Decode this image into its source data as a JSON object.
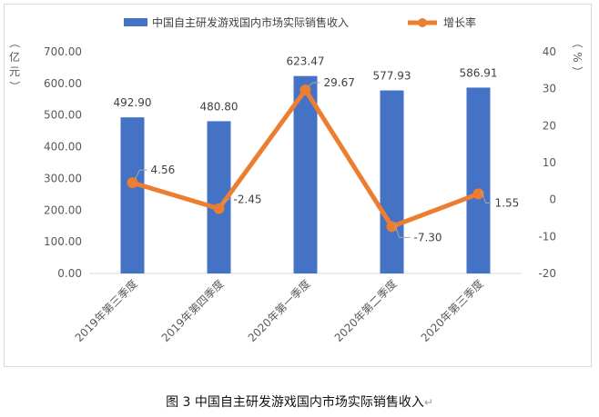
{
  "caption": "图 3  中国自主研发游戏国内市场实际销售收入",
  "caption_mark": "↵",
  "chart_data": {
    "type": "bar",
    "categories": [
      "2019年第三季度",
      "2019年第四季度",
      "2020年第一季度",
      "2020年第二季度",
      "2020年第三季度"
    ],
    "series": [
      {
        "name": "中国自主研发游戏国内市场实际销售收入",
        "type": "bar",
        "axis": "left",
        "values": [
          492.9,
          480.8,
          623.47,
          577.93,
          586.91
        ],
        "labels": [
          "492.90",
          "480.80",
          "623.47",
          "577.93",
          "586.91"
        ],
        "color": "#4472c4"
      },
      {
        "name": "增长率",
        "type": "line",
        "axis": "right",
        "values": [
          4.56,
          -2.45,
          29.67,
          -7.3,
          1.55
        ],
        "labels": [
          "4.56",
          "-2.45",
          "29.67",
          "-7.30",
          "1.55"
        ],
        "color": "#ed7d31"
      }
    ],
    "y_left": {
      "unit": "（亿元）",
      "ylim": [
        0,
        700
      ],
      "ticks": [
        "0.00",
        "100.00",
        "200.00",
        "300.00",
        "400.00",
        "500.00",
        "600.00",
        "700.00"
      ]
    },
    "y_right": {
      "unit": "（%）",
      "ylim": [
        -20,
        40
      ],
      "ticks": [
        "-20",
        "-10",
        "0",
        "10",
        "20",
        "30",
        "40"
      ]
    },
    "legend_position": "top",
    "grid": false
  }
}
